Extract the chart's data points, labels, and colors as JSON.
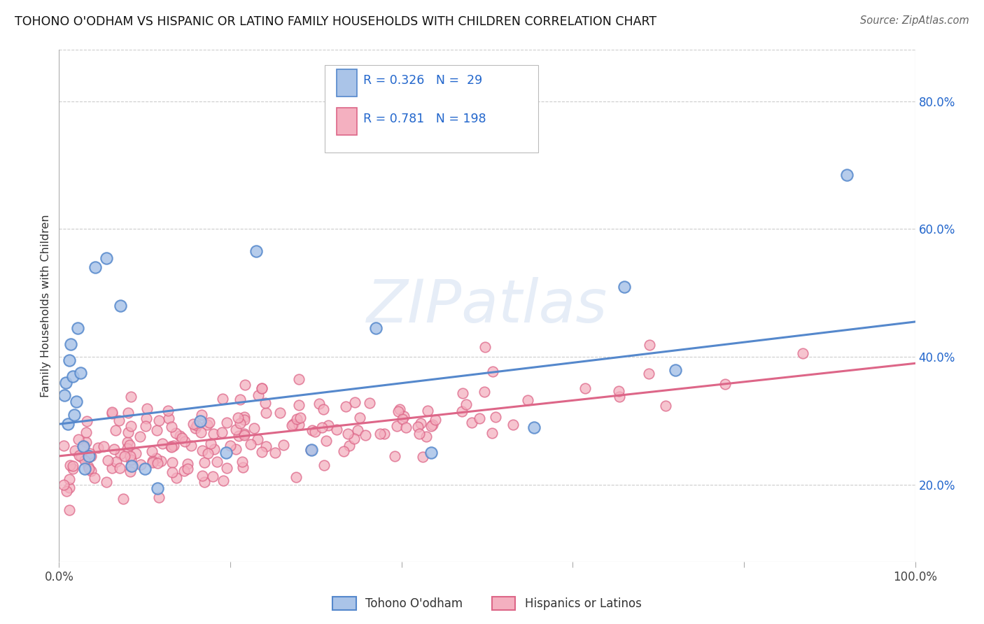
{
  "title": "TOHONO O'ODHAM VS HISPANIC OR LATINO FAMILY HOUSEHOLDS WITH CHILDREN CORRELATION CHART",
  "source": "Source: ZipAtlas.com",
  "ylabel": "Family Households with Children",
  "xlim": [
    0.0,
    1.0
  ],
  "ylim": [
    0.08,
    0.88
  ],
  "ytick_labels_right": [
    "20.0%",
    "40.0%",
    "60.0%",
    "80.0%"
  ],
  "ytick_positions_right": [
    0.2,
    0.4,
    0.6,
    0.8
  ],
  "blue_color": "#5588cc",
  "blue_fill": "#aac4e8",
  "pink_color": "#dd6688",
  "pink_fill": "#f4b0c0",
  "R_blue": 0.326,
  "N_blue": 29,
  "R_pink": 0.781,
  "N_pink": 198,
  "blue_line_start_x": 0.0,
  "blue_line_start_y": 0.295,
  "blue_line_end_x": 1.0,
  "blue_line_end_y": 0.455,
  "pink_line_start_x": 0.0,
  "pink_line_start_y": 0.245,
  "pink_line_end_x": 1.0,
  "pink_line_end_y": 0.39,
  "watermark": "ZIPatlas",
  "background_color": "#ffffff",
  "grid_color": "#cccccc",
  "tohono_x": [
    0.006,
    0.008,
    0.01,
    0.012,
    0.014,
    0.016,
    0.018,
    0.02,
    0.022,
    0.025,
    0.028,
    0.03,
    0.035,
    0.042,
    0.055,
    0.072,
    0.085,
    0.1,
    0.115,
    0.165,
    0.195,
    0.23,
    0.295,
    0.37,
    0.435,
    0.555,
    0.66,
    0.72,
    0.92
  ],
  "tohono_y": [
    0.34,
    0.36,
    0.295,
    0.395,
    0.42,
    0.37,
    0.31,
    0.33,
    0.445,
    0.375,
    0.26,
    0.225,
    0.245,
    0.54,
    0.555,
    0.48,
    0.23,
    0.225,
    0.195,
    0.3,
    0.25,
    0.565,
    0.255,
    0.445,
    0.25,
    0.29,
    0.51,
    0.38,
    0.685
  ]
}
